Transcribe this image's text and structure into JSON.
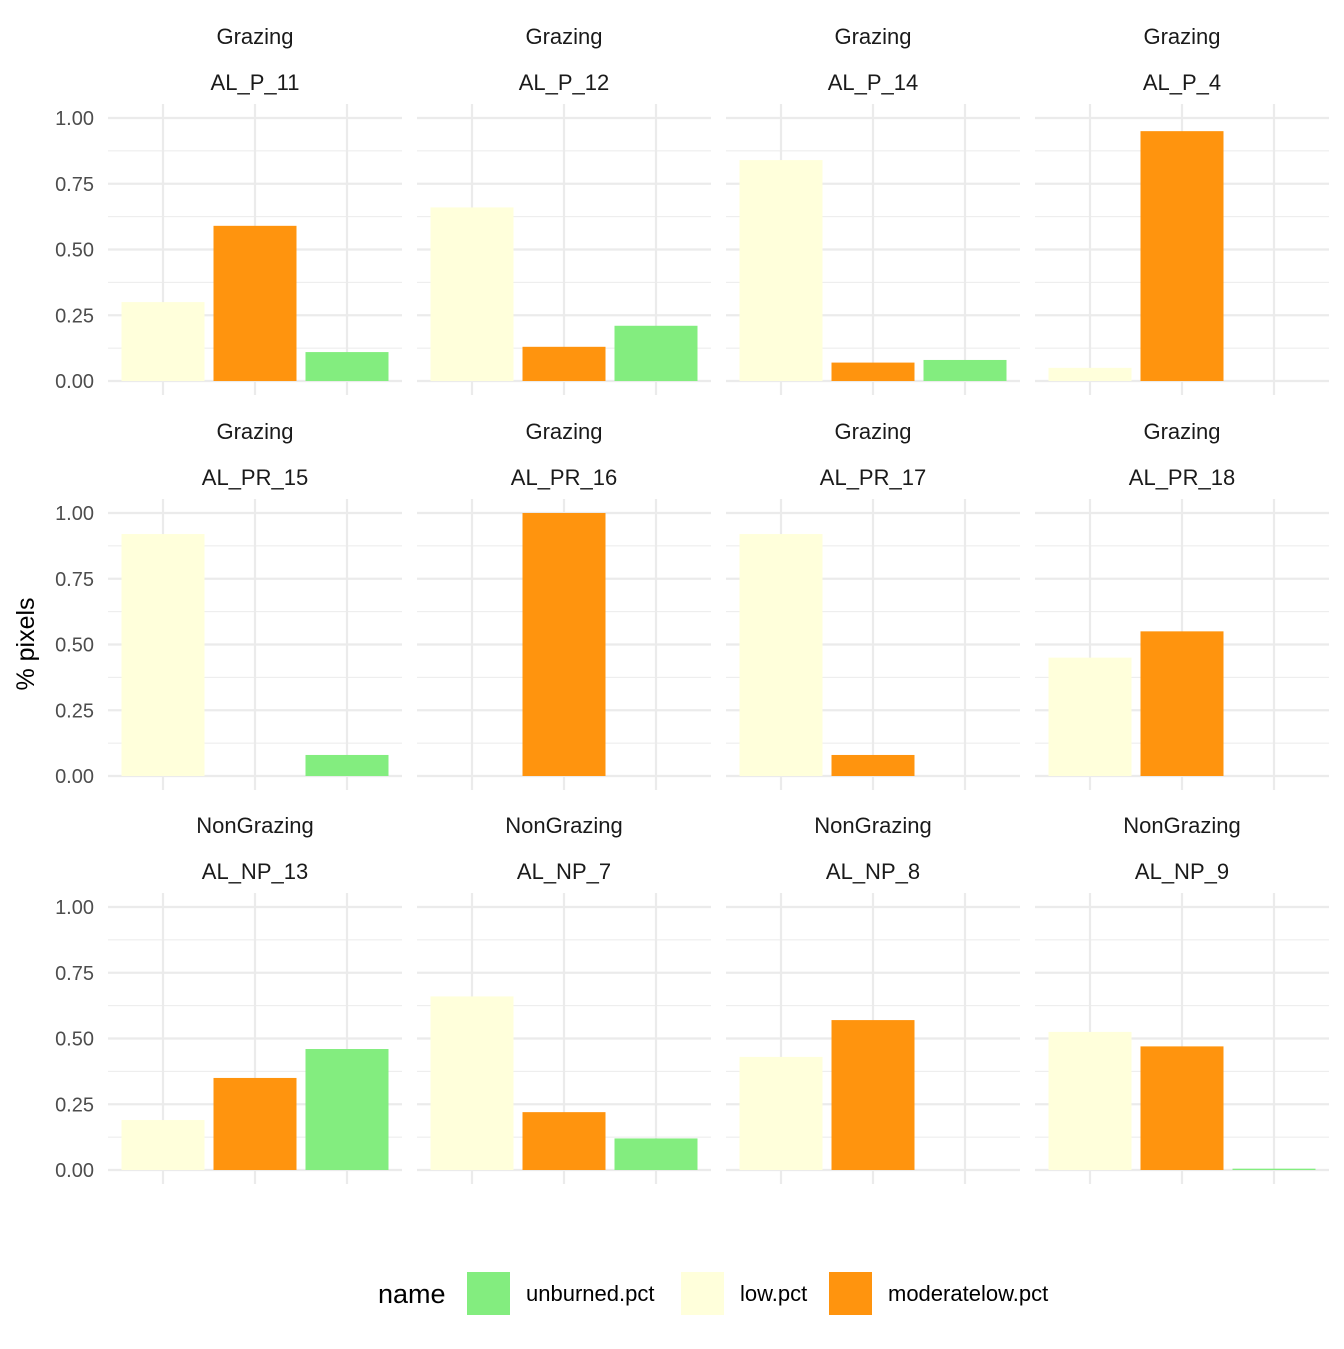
{
  "chart_data": {
    "type": "bar",
    "ylabel": "% pixels",
    "xlabel": "",
    "ylim": [
      0,
      1.05
    ],
    "yticks": [
      "0.00",
      "0.25",
      "0.50",
      "0.75",
      "1.00"
    ],
    "grid": true,
    "legend": {
      "title": "name",
      "position": "bottom",
      "entries": [
        {
          "label": "unburned.pct",
          "color": "#83ED7F"
        },
        {
          "label": "low.pct",
          "color": "#FFFFDB"
        },
        {
          "label": "moderatelow.pct",
          "color": "#FF940E"
        }
      ]
    },
    "bar_order": [
      "low.pct",
      "moderatelow.pct",
      "unburned.pct"
    ],
    "colors": {
      "unburned.pct": "#83ED7F",
      "low.pct": "#FFFFDB",
      "moderatelow.pct": "#FF940E"
    },
    "facets": [
      {
        "group": "Grazing",
        "site": "AL_P_11",
        "values": {
          "low.pct": 0.3,
          "moderatelow.pct": 0.59,
          "unburned.pct": 0.11
        }
      },
      {
        "group": "Grazing",
        "site": "AL_P_12",
        "values": {
          "low.pct": 0.66,
          "moderatelow.pct": 0.13,
          "unburned.pct": 0.21
        }
      },
      {
        "group": "Grazing",
        "site": "AL_P_14",
        "values": {
          "low.pct": 0.84,
          "moderatelow.pct": 0.07,
          "unburned.pct": 0.08
        }
      },
      {
        "group": "Grazing",
        "site": "AL_P_4",
        "values": {
          "low.pct": 0.05,
          "moderatelow.pct": 0.95,
          "unburned.pct": 0.0
        }
      },
      {
        "group": "Grazing",
        "site": "AL_PR_15",
        "values": {
          "low.pct": 0.92,
          "moderatelow.pct": 0.0,
          "unburned.pct": 0.08
        }
      },
      {
        "group": "Grazing",
        "site": "AL_PR_16",
        "values": {
          "low.pct": 0.0,
          "moderatelow.pct": 1.0,
          "unburned.pct": 0.0
        }
      },
      {
        "group": "Grazing",
        "site": "AL_PR_17",
        "values": {
          "low.pct": 0.92,
          "moderatelow.pct": 0.08,
          "unburned.pct": 0.0
        }
      },
      {
        "group": "Grazing",
        "site": "AL_PR_18",
        "values": {
          "low.pct": 0.45,
          "moderatelow.pct": 0.55,
          "unburned.pct": 0.0
        }
      },
      {
        "group": "NonGrazing",
        "site": "AL_NP_13",
        "values": {
          "low.pct": 0.19,
          "moderatelow.pct": 0.35,
          "unburned.pct": 0.46
        }
      },
      {
        "group": "NonGrazing",
        "site": "AL_NP_7",
        "values": {
          "low.pct": 0.66,
          "moderatelow.pct": 0.22,
          "unburned.pct": 0.12
        }
      },
      {
        "group": "NonGrazing",
        "site": "AL_NP_8",
        "values": {
          "low.pct": 0.43,
          "moderatelow.pct": 0.57,
          "unburned.pct": 0.0
        }
      },
      {
        "group": "NonGrazing",
        "site": "AL_NP_9",
        "values": {
          "low.pct": 0.525,
          "moderatelow.pct": 0.47,
          "unburned.pct": 0.005
        }
      }
    ]
  }
}
